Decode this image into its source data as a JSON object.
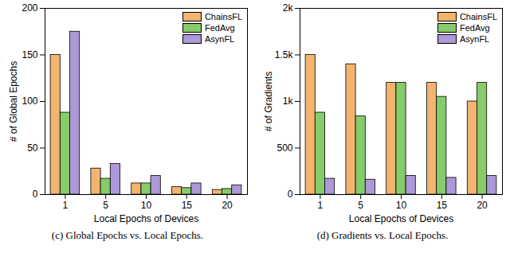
{
  "chart_data": [
    {
      "type": "bar",
      "caption": "(c) Global Epochs vs. Local Epochs.",
      "x_label": "Local Epochs of Devices",
      "y_label": "# of Global Epochs",
      "categories": [
        1,
        5,
        10,
        15,
        20
      ],
      "series": [
        {
          "name": "ChainsFL",
          "color": "#f2b46e",
          "values": [
            150,
            28,
            12,
            8,
            5
          ]
        },
        {
          "name": "FedAvg",
          "color": "#86cc6a",
          "values": [
            88,
            17,
            12,
            7,
            6
          ]
        },
        {
          "name": "AsynFL",
          "color": "#ad98d8",
          "values": [
            175,
            33,
            20,
            12,
            10
          ]
        }
      ],
      "ylim": [
        0,
        200
      ],
      "yticks": [
        0,
        50,
        100,
        150,
        200
      ],
      "grid": false,
      "legend": "top-right"
    },
    {
      "type": "bar",
      "caption": "(d) Gradients vs. Local Epochs.",
      "x_label": "Local Epochs of Devices",
      "y_label": "# of Gradients",
      "categories": [
        1,
        5,
        10,
        15,
        20
      ],
      "series": [
        {
          "name": "ChainsFL",
          "color": "#f2b46e",
          "values": [
            1500,
            1400,
            1200,
            1200,
            1000
          ]
        },
        {
          "name": "FedAvg",
          "color": "#86cc6a",
          "values": [
            880,
            840,
            1200,
            1050,
            1200
          ]
        },
        {
          "name": "AsynFL",
          "color": "#ad98d8",
          "values": [
            170,
            160,
            200,
            180,
            200
          ]
        }
      ],
      "ylim": [
        0,
        2000
      ],
      "yticks": [
        0,
        500,
        {
          "value": 1000,
          "label": "1k"
        },
        {
          "value": 1500,
          "label": "1.5k"
        },
        {
          "value": 2000,
          "label": "2k"
        }
      ],
      "grid": false,
      "legend": "top-right"
    }
  ]
}
